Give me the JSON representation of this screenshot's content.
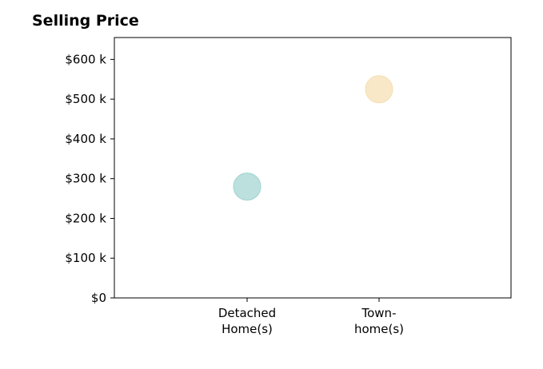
{
  "chart_data": {
    "type": "scatter",
    "title": "Selling Price",
    "xlabel": "",
    "ylabel": "",
    "categories": [
      "Detached\nHome(s)",
      "Town-\nhome(s)"
    ],
    "values": [
      280000,
      525000
    ],
    "colors": [
      "#9fd3cf",
      "#f5deb0"
    ],
    "ylim": [
      0,
      655000
    ],
    "yticks": [
      {
        "value": 0,
        "label": "$0"
      },
      {
        "value": 100000,
        "label": "$100 k"
      },
      {
        "value": 200000,
        "label": "$200 k"
      },
      {
        "value": 300000,
        "label": "$300 k"
      },
      {
        "value": 400000,
        "label": "$400 k"
      },
      {
        "value": 500000,
        "label": "$500 k"
      },
      {
        "value": 600000,
        "label": "$600 k"
      }
    ],
    "grid": false,
    "legend": "none"
  }
}
